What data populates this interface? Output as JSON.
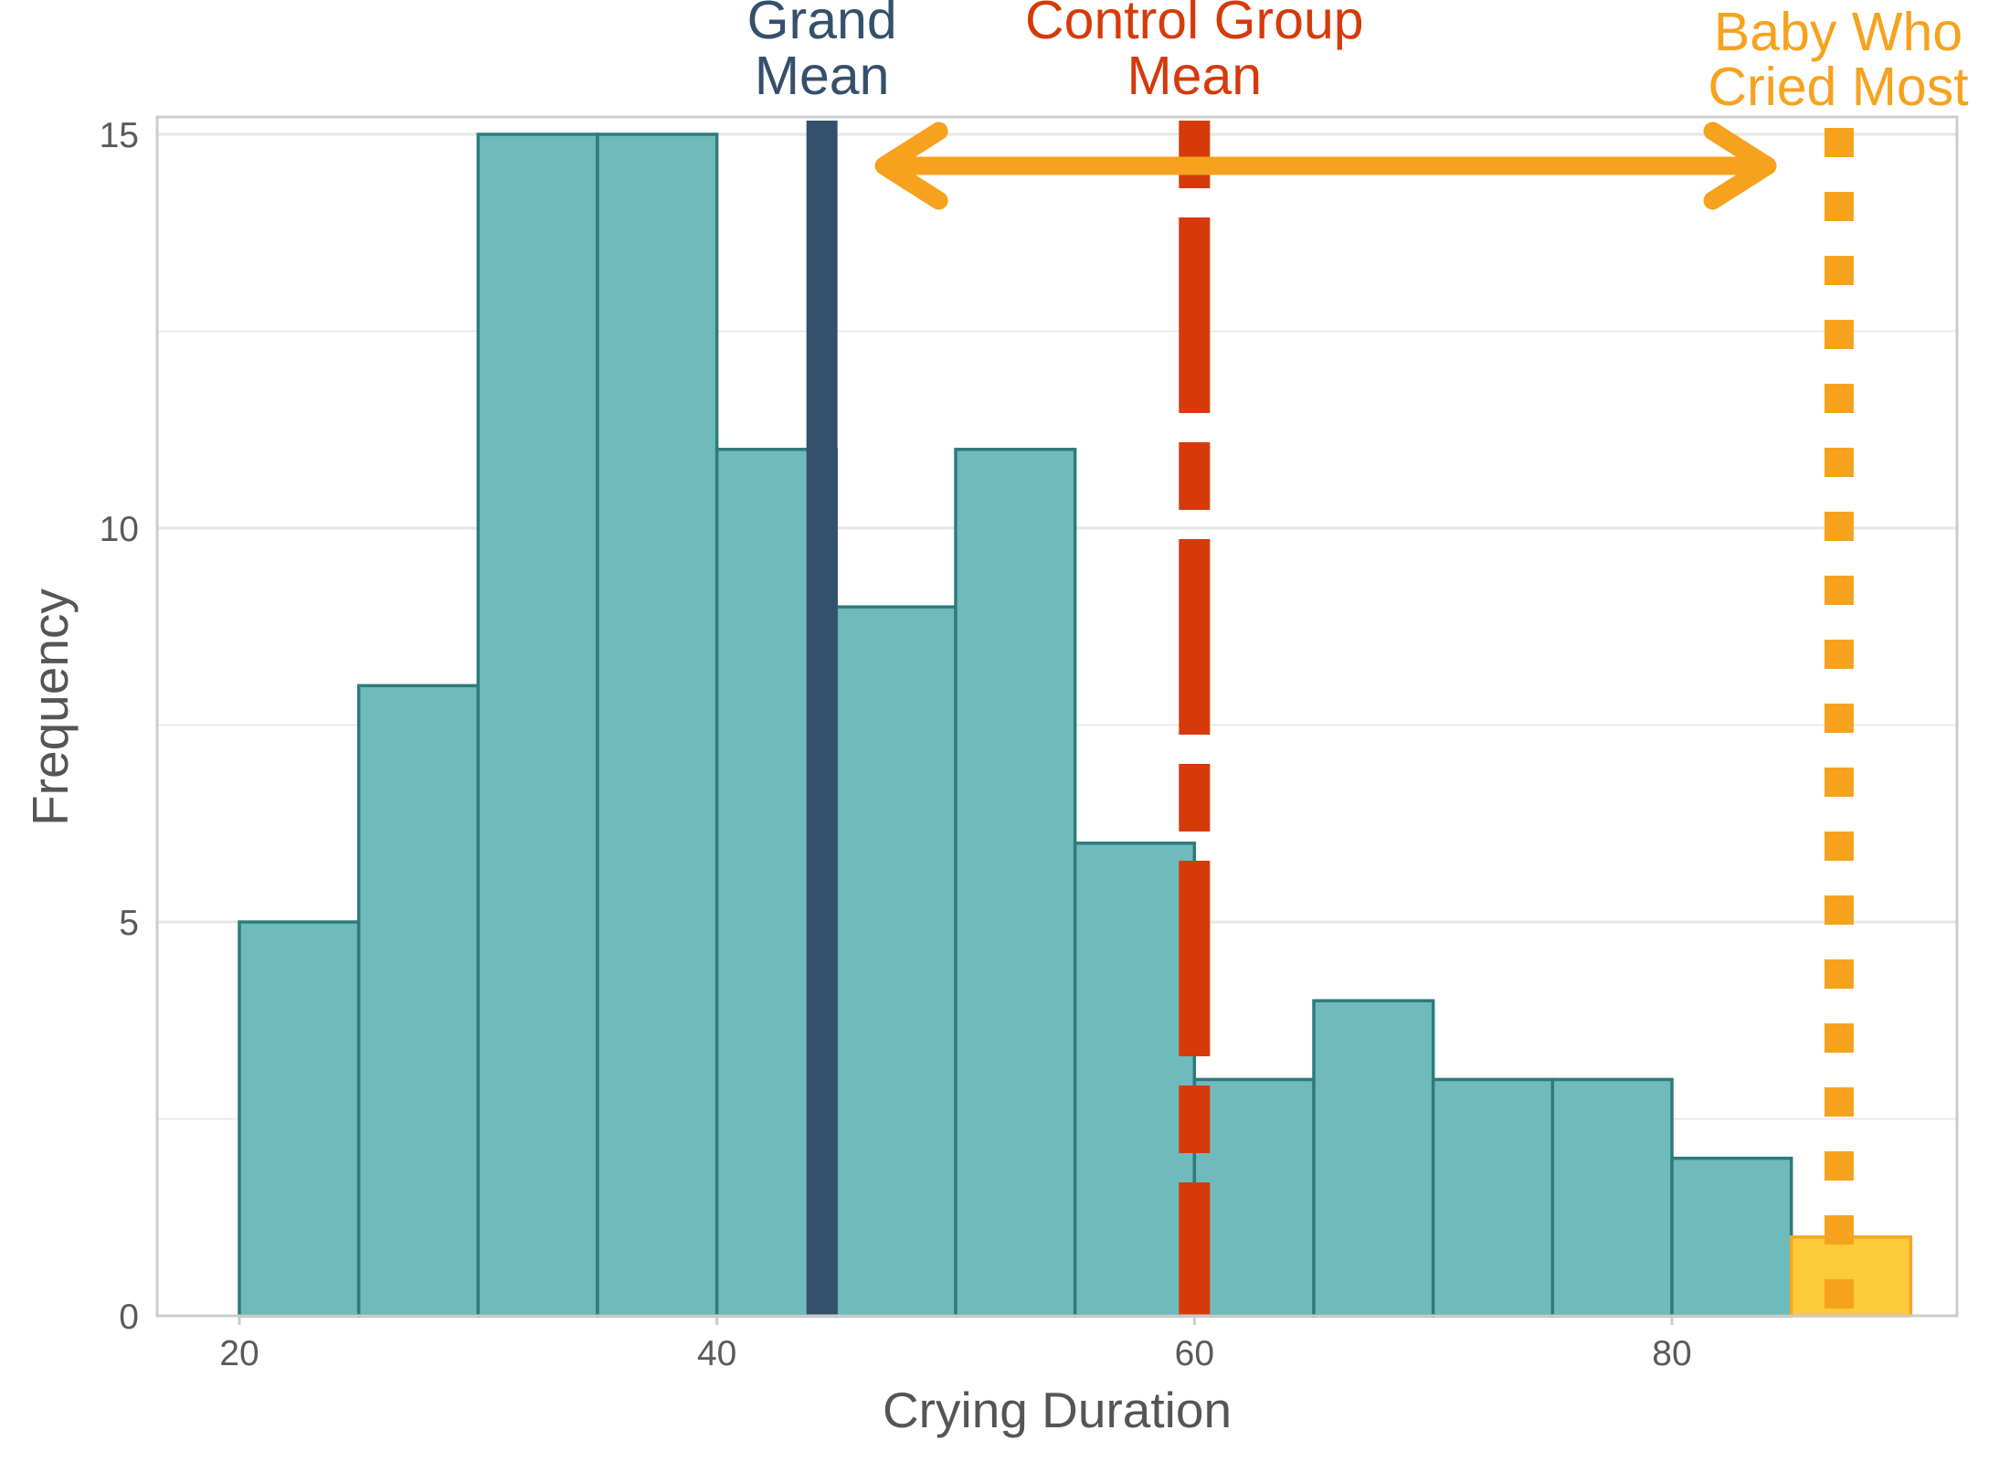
{
  "chart_data": {
    "type": "bar",
    "subtype": "histogram",
    "xlabel": "Crying Duration",
    "ylabel": "Frequency",
    "xlim": [
      16.5,
      93.5
    ],
    "ylim": [
      0,
      15.4
    ],
    "xticks": [
      20,
      40,
      60,
      80
    ],
    "yticks": [
      0,
      5,
      10,
      15
    ],
    "grid": "horizontal",
    "bin_width": 5,
    "bins": [
      {
        "start": 20,
        "end": 25,
        "count": 5
      },
      {
        "start": 25,
        "end": 30,
        "count": 8
      },
      {
        "start": 30,
        "end": 35,
        "count": 15
      },
      {
        "start": 35,
        "end": 40,
        "count": 15
      },
      {
        "start": 40,
        "end": 45,
        "count": 11
      },
      {
        "start": 45,
        "end": 50,
        "count": 9
      },
      {
        "start": 50,
        "end": 55,
        "count": 11
      },
      {
        "start": 55,
        "end": 60,
        "count": 6
      },
      {
        "start": 60,
        "end": 65,
        "count": 3
      },
      {
        "start": 65,
        "end": 70,
        "count": 4
      },
      {
        "start": 70,
        "end": 75,
        "count": 3
      },
      {
        "start": 75,
        "end": 80,
        "count": 3
      },
      {
        "start": 80,
        "end": 85,
        "count": 2
      },
      {
        "start": 85,
        "end": 90,
        "count": 1,
        "highlight": true
      }
    ],
    "reference_lines": [
      {
        "label_lines": [
          "Grand",
          "Mean"
        ],
        "x": 44.4,
        "style": "solid",
        "color": "#34506d"
      },
      {
        "label_lines": [
          "Control Group",
          "Mean"
        ],
        "x": 60.0,
        "style": "dashed",
        "color": "#d63a0a"
      },
      {
        "label_lines": [
          "Baby Who",
          "Cried Most"
        ],
        "x": 87.0,
        "style": "dotted",
        "color": "#f7a21e"
      }
    ],
    "arrow": {
      "from": 47,
      "to": 84,
      "y": 14.6,
      "color": "#f7a21e",
      "double_headed": true
    },
    "colors": {
      "bar_fill": "#6fbbbc",
      "bar_stroke": "#2e7b7c",
      "highlight_fill": "#fccb39",
      "highlight_stroke": "#f5a623",
      "grid": "#e6e6e6",
      "panel_border": "#cccccc"
    }
  }
}
